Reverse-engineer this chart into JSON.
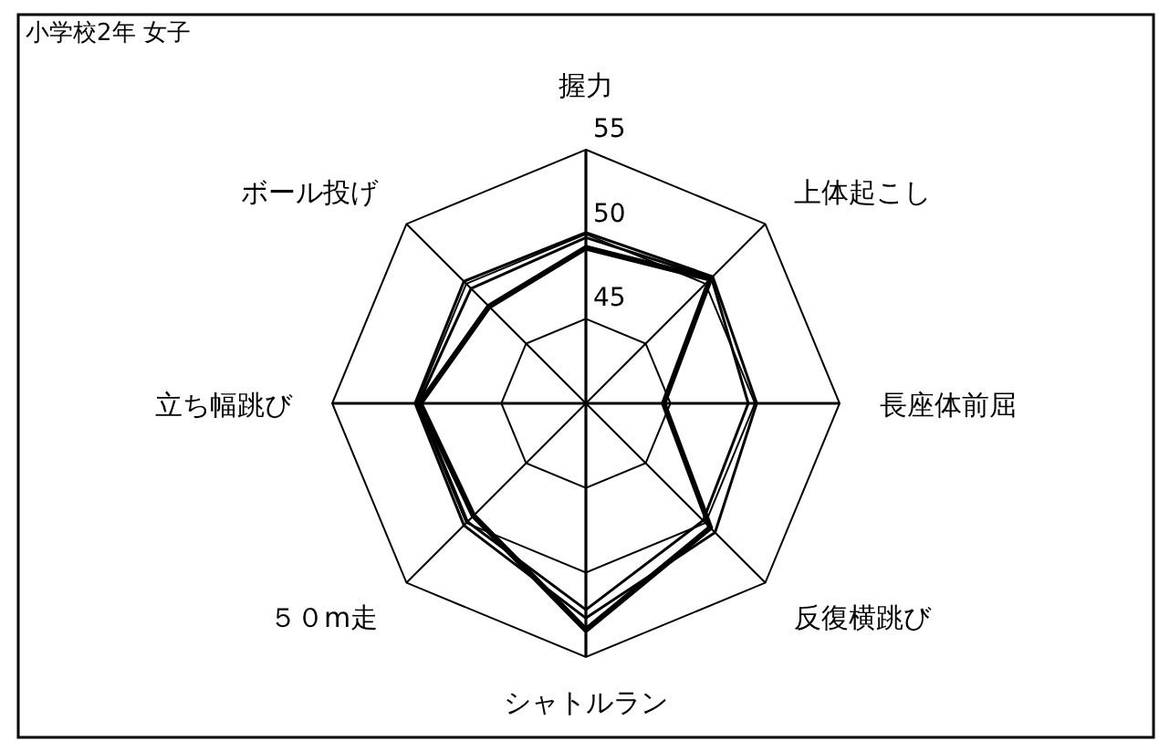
{
  "chart_data": {
    "type": "radar",
    "title": "小学校2年 女子",
    "categories": [
      "握力",
      "上体起こし",
      "長座体前屈",
      "反復横跳び",
      "シャトルラン",
      "５０m走",
      "立ち幅跳び",
      "ボール投げ"
    ],
    "ylim": [
      40,
      55
    ],
    "yticks": [
      45,
      50,
      55
    ],
    "grid": true,
    "marker": "none",
    "line_style": "solid",
    "series": [
      {
        "color": "#000000",
        "values": [
          50.1,
          50.6,
          50.1,
          50.8,
          52.7,
          50.2,
          50.1,
          50.2
        ]
      },
      {
        "color": "#000000",
        "values": [
          49.8,
          50.5,
          49.6,
          49.8,
          52.2,
          49.9,
          49.9,
          49.6
        ]
      },
      {
        "color": "#000000",
        "values": [
          49.2,
          50.4,
          44.6,
          50.4,
          53.4,
          49.4,
          49.8,
          48.1
        ]
      }
    ]
  }
}
